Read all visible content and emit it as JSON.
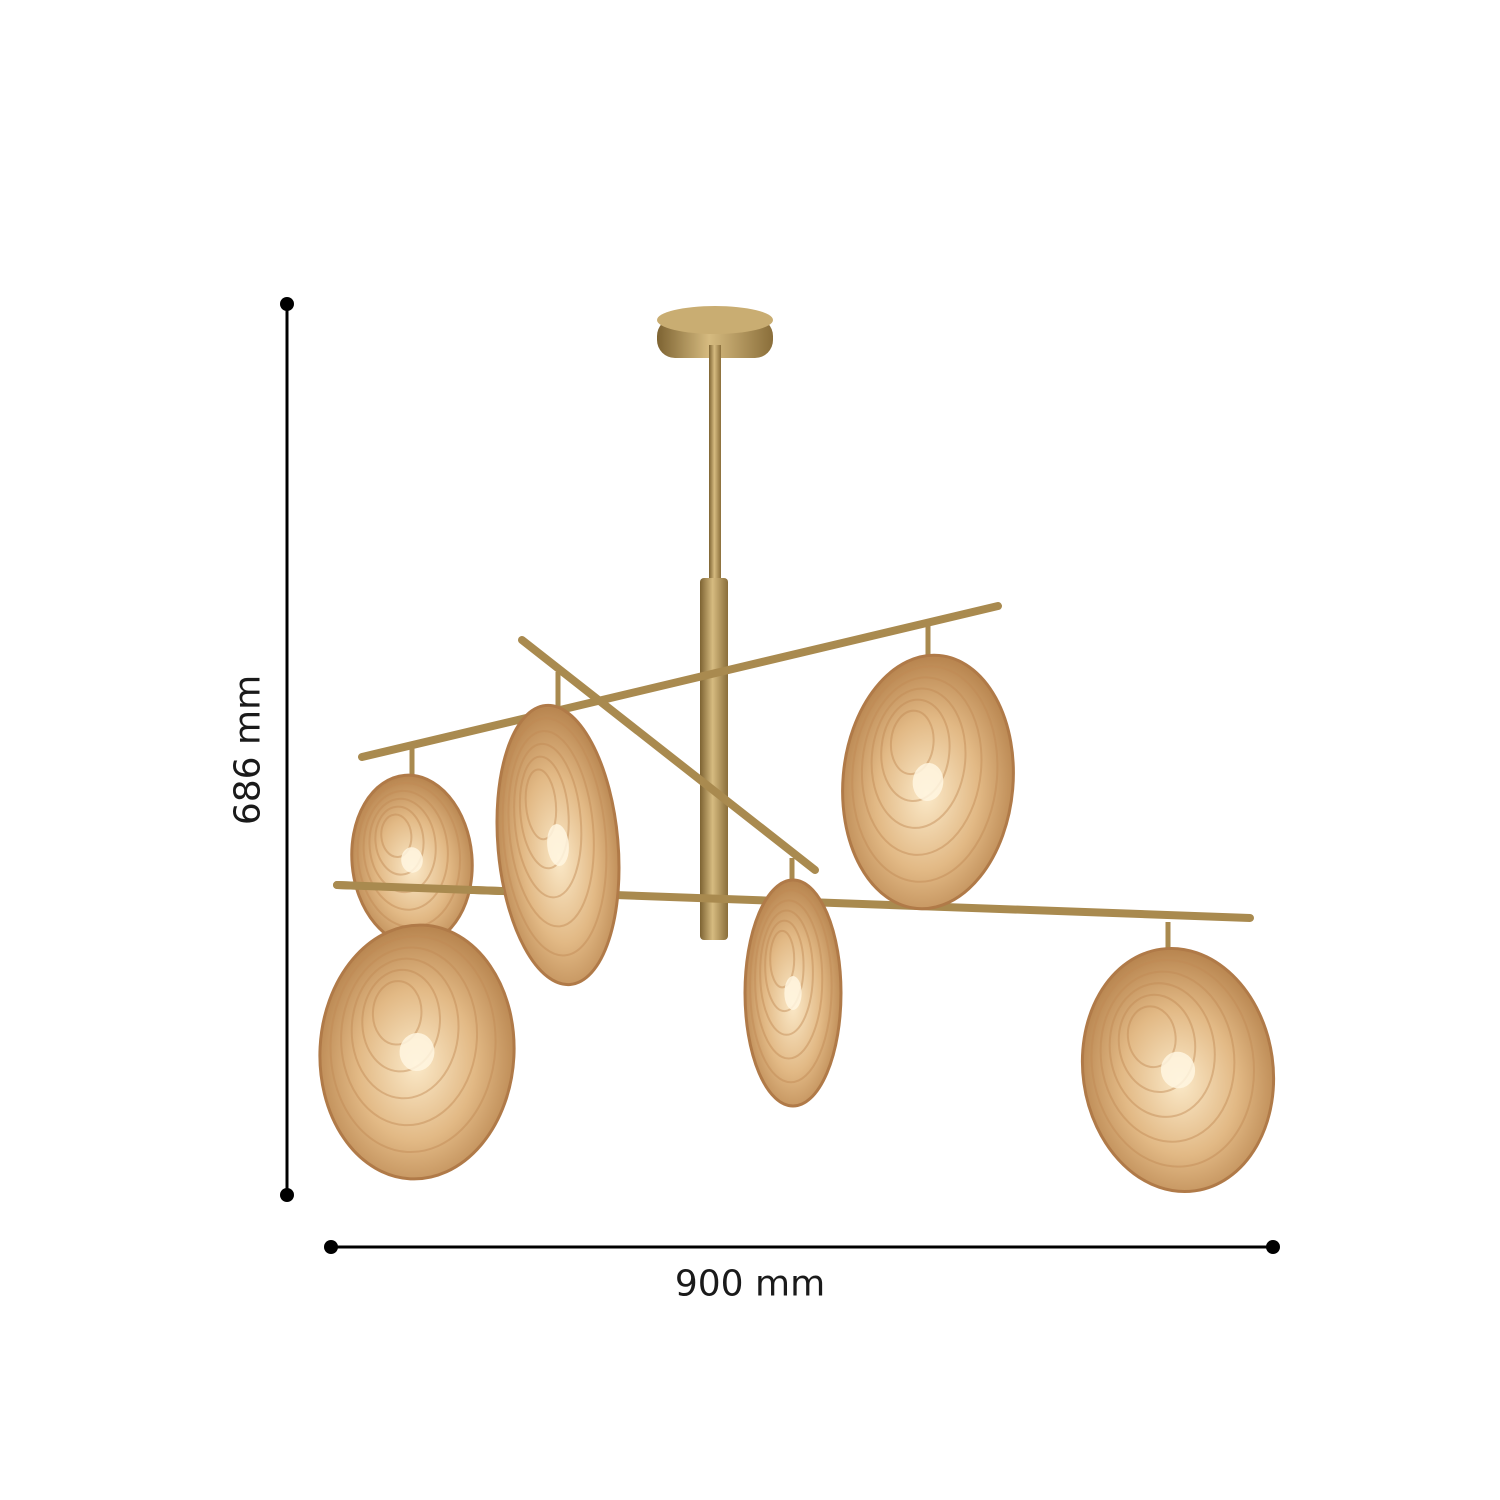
{
  "dimensions": {
    "height_label": "686 mm",
    "width_label": "900 mm"
  },
  "product": {
    "type": "chandelier",
    "shade_count": 6,
    "colors": {
      "brass": "#b8995a",
      "amber_glass": "#d9a86a",
      "dimension_line": "#000000"
    }
  }
}
